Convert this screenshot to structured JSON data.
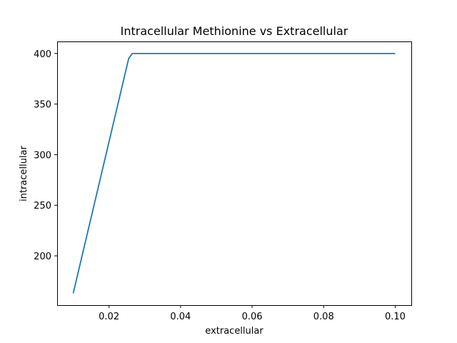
{
  "chart_data": {
    "type": "line",
    "title": "Intracellular Methionine vs Extracellular",
    "xlabel": "extracellular",
    "ylabel": "intracellular",
    "xlim": [
      0.0055,
      0.1045
    ],
    "ylim": [
      151.3,
      411.9
    ],
    "xticks": [
      0.02,
      0.04,
      0.06,
      0.08,
      0.1
    ],
    "xtick_labels": [
      "0.02",
      "0.04",
      "0.06",
      "0.08",
      "0.10"
    ],
    "yticks": [
      200,
      250,
      300,
      350,
      400
    ],
    "ytick_labels": [
      "200",
      "250",
      "300",
      "350",
      "400"
    ],
    "grid": false,
    "series": [
      {
        "color": "#1f77b4",
        "x": [
          0.01,
          0.0255,
          0.0265,
          0.1
        ],
        "y": [
          163,
          395,
          400,
          400
        ]
      }
    ]
  }
}
